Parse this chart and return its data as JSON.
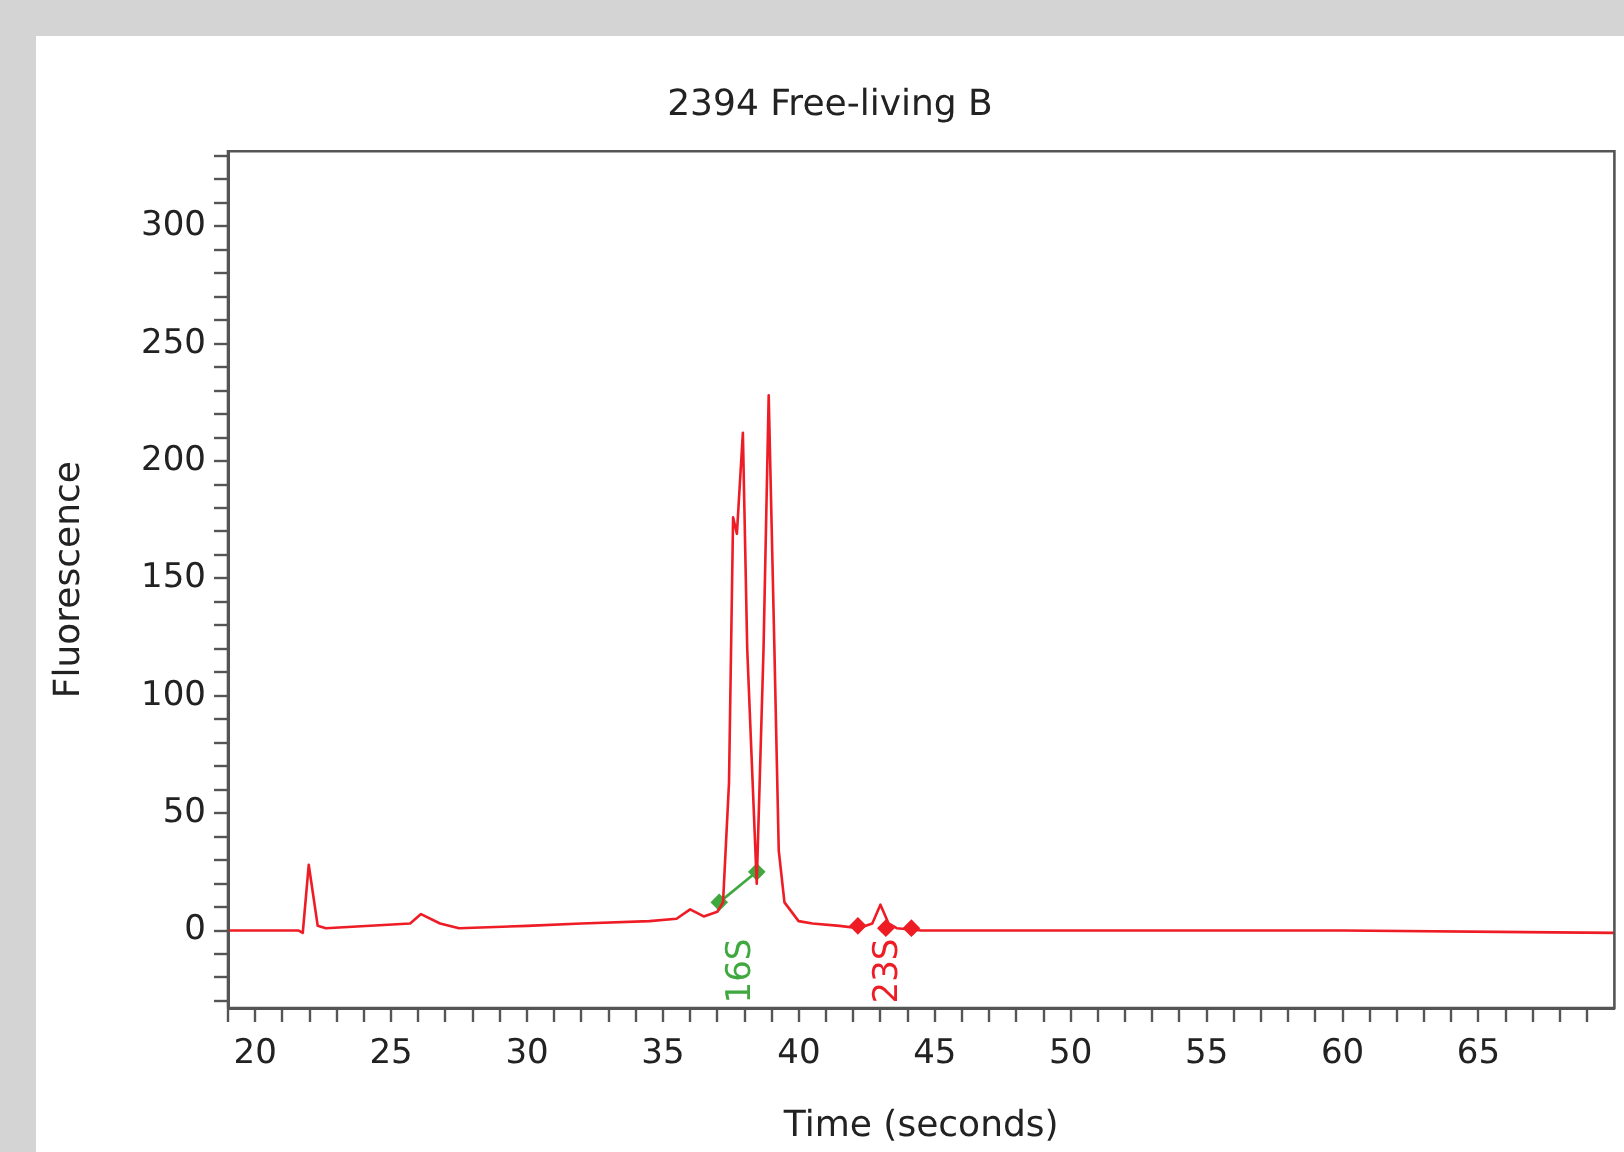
{
  "chart_data": {
    "type": "line",
    "title": "2394 Free-living B",
    "xlabel": "Time (seconds)",
    "ylabel": "Fluorescence",
    "xlim": [
      19,
      70
    ],
    "xticks": [
      {
        "value": 19,
        "label": null
      },
      20,
      {
        "value": 21,
        "label": null
      },
      {
        "value": 22,
        "label": null
      },
      {
        "value": 23,
        "label": null
      },
      {
        "value": 24,
        "label": null
      },
      25,
      {
        "value": 26,
        "label": null
      },
      {
        "value": 27,
        "label": null
      },
      {
        "value": 28,
        "label": null
      },
      {
        "value": 29,
        "label": null
      },
      30,
      {
        "value": 31,
        "label": null
      },
      {
        "value": 32,
        "label": null
      },
      {
        "value": 33,
        "label": null
      },
      {
        "value": 34,
        "label": null
      },
      35,
      {
        "value": 36,
        "label": null
      },
      {
        "value": 37,
        "label": null
      },
      {
        "value": 38,
        "label": null
      },
      {
        "value": 39,
        "label": null
      },
      40,
      {
        "value": 41,
        "label": null
      },
      {
        "value": 42,
        "label": null
      },
      {
        "value": 43,
        "label": null
      },
      {
        "value": 44,
        "label": null
      },
      45,
      {
        "value": 46,
        "label": null
      },
      {
        "value": 47,
        "label": null
      },
      {
        "value": 48,
        "label": null
      },
      {
        "value": 49,
        "label": null
      },
      50,
      {
        "value": 51,
        "label": null
      },
      {
        "value": 52,
        "label": null
      },
      {
        "value": 53,
        "label": null
      },
      {
        "value": 54,
        "label": null
      },
      55,
      {
        "value": 56,
        "label": null
      },
      {
        "value": 57,
        "label": null
      },
      {
        "value": 58,
        "label": null
      },
      {
        "value": 59,
        "label": null
      },
      60,
      {
        "value": 61,
        "label": null
      },
      {
        "value": 62,
        "label": null
      },
      {
        "value": 63,
        "label": null
      },
      {
        "value": 64,
        "label": null
      },
      65,
      {
        "value": 66,
        "label": null
      },
      {
        "value": 67,
        "label": null
      },
      {
        "value": 68,
        "label": null
      },
      {
        "value": 69,
        "label": null
      }
    ],
    "ylim": [
      -33,
      332
    ],
    "yticks": [
      {
        "value": -30,
        "label": null
      },
      {
        "value": -20,
        "label": null
      },
      {
        "value": -10,
        "label": null
      },
      0,
      {
        "value": 10,
        "label": null
      },
      {
        "value": 20,
        "label": null
      },
      {
        "value": 30,
        "label": null
      },
      {
        "value": 40,
        "label": null
      },
      50,
      {
        "value": 60,
        "label": null
      },
      {
        "value": 70,
        "label": null
      },
      {
        "value": 80,
        "label": null
      },
      {
        "value": 90,
        "label": null
      },
      100,
      {
        "value": 110,
        "label": null
      },
      {
        "value": 120,
        "label": null
      },
      {
        "value": 130,
        "label": null
      },
      {
        "value": 140,
        "label": null
      },
      150,
      {
        "value": 160,
        "label": null
      },
      {
        "value": 170,
        "label": null
      },
      {
        "value": 180,
        "label": null
      },
      {
        "value": 190,
        "label": null
      },
      200,
      {
        "value": 210,
        "label": null
      },
      {
        "value": 220,
        "label": null
      },
      {
        "value": 230,
        "label": null
      },
      {
        "value": 240,
        "label": null
      },
      250,
      {
        "value": 260,
        "label": null
      },
      {
        "value": 270,
        "label": null
      },
      {
        "value": 280,
        "label": null
      },
      {
        "value": 290,
        "label": null
      },
      300,
      {
        "value": 310,
        "label": null
      },
      {
        "value": 320,
        "label": null
      },
      {
        "value": 330,
        "label": null
      }
    ],
    "grid": false,
    "legend": false,
    "line_style": "solid",
    "marker": "none",
    "series": [
      {
        "color": "#ee1c25",
        "x": [
          19,
          21.6,
          21.75,
          21.97,
          22.3,
          22.6,
          25.7,
          26.1,
          26.8,
          27.5,
          30,
          32,
          34.5,
          35.5,
          36,
          36.5,
          37,
          37.21,
          37.43,
          37.58,
          37.72,
          37.94,
          38.1,
          38.45,
          38.7,
          38.89,
          39.1,
          39.26,
          39.47,
          39.99,
          40.5,
          41.5,
          42.2,
          42.7,
          43.0,
          43.3,
          43.6,
          44.5,
          50,
          60,
          70
        ],
        "values": [
          0,
          0,
          -1,
          28,
          2,
          1,
          3,
          7,
          3,
          1,
          2,
          3,
          4,
          5,
          9,
          6,
          8,
          12,
          63,
          176,
          169,
          212,
          120,
          20,
          120,
          228,
          120,
          34,
          12,
          4,
          3,
          2,
          1,
          3,
          11,
          3,
          1,
          0,
          0,
          0,
          -1
        ]
      },
      {
        "type": "line",
        "color": "#3fa83f",
        "marker": "diamond",
        "x": [
          37.07,
          38.45
        ],
        "values": [
          12,
          25
        ]
      },
      {
        "type": "scatter",
        "color": "#ee1c25",
        "marker": "diamond",
        "x": [
          42.17,
          43.2,
          44.14
        ],
        "values": [
          2,
          1,
          1
        ]
      }
    ],
    "annotations": [
      "16S",
      "23S"
    ]
  }
}
